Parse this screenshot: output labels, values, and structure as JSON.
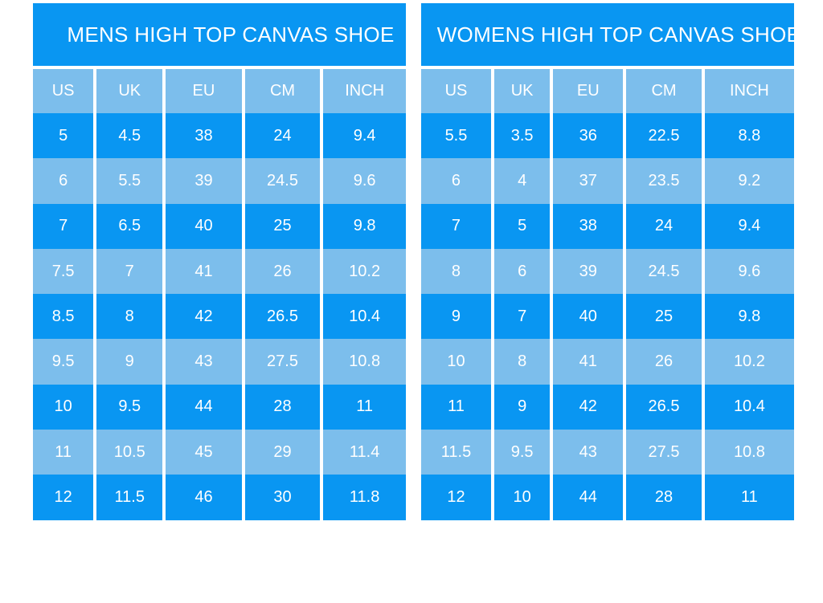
{
  "colors": {
    "primary_blue": "#0996F2",
    "light_blue": "#7CBEEC",
    "separator_white": "#FFFFFF",
    "text_white": "#FFFFFF"
  },
  "chart_data": [
    {
      "type": "table",
      "title": "MENS HIGH TOP CANVAS SHOE",
      "columns": [
        "US",
        "UK",
        "EU",
        "CM",
        "INCH"
      ],
      "rows": [
        [
          "5",
          "4.5",
          "38",
          "24",
          "9.4"
        ],
        [
          "6",
          "5.5",
          "39",
          "24.5",
          "9.6"
        ],
        [
          "7",
          "6.5",
          "40",
          "25",
          "9.8"
        ],
        [
          "7.5",
          "7",
          "41",
          "26",
          "10.2"
        ],
        [
          "8.5",
          "8",
          "42",
          "26.5",
          "10.4"
        ],
        [
          "9.5",
          "9",
          "43",
          "27.5",
          "10.8"
        ],
        [
          "10",
          "9.5",
          "44",
          "28",
          "11"
        ],
        [
          "11",
          "10.5",
          "45",
          "29",
          "11.4"
        ],
        [
          "12",
          "11.5",
          "46",
          "30",
          "11.8"
        ]
      ],
      "layout": {
        "row_striping": [
          "dark",
          "light"
        ],
        "header_style": "light",
        "grid": "vertical-separators-only"
      }
    },
    {
      "type": "table",
      "title": "WOMENS HIGH TOP CANVAS SHOE",
      "columns": [
        "US",
        "UK",
        "EU",
        "CM",
        "INCH"
      ],
      "rows": [
        [
          "5.5",
          "3.5",
          "36",
          "22.5",
          "8.8"
        ],
        [
          "6",
          "4",
          "37",
          "23.5",
          "9.2"
        ],
        [
          "7",
          "5",
          "38",
          "24",
          "9.4"
        ],
        [
          "8",
          "6",
          "39",
          "24.5",
          "9.6"
        ],
        [
          "9",
          "7",
          "40",
          "25",
          "9.8"
        ],
        [
          "10",
          "8",
          "41",
          "26",
          "10.2"
        ],
        [
          "11",
          "9",
          "42",
          "26.5",
          "10.4"
        ],
        [
          "11.5",
          "9.5",
          "43",
          "27.5",
          "10.8"
        ],
        [
          "12",
          "10",
          "44",
          "28",
          "11"
        ]
      ],
      "layout": {
        "row_striping": [
          "dark",
          "light"
        ],
        "header_style": "light",
        "grid": "vertical-separators-only"
      }
    }
  ]
}
